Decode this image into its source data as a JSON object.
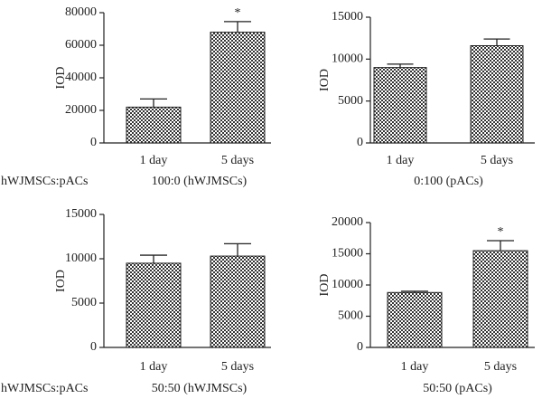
{
  "chart_data": [
    {
      "type": "bar",
      "ylabel": "IOD",
      "row_label": "hWJMSCs:pACs",
      "caption": "100:0 (hWJMSCs)",
      "categories": [
        "1 day",
        "5 days"
      ],
      "values": [
        22000,
        68000
      ],
      "errors": [
        5000,
        6500
      ],
      "ylim": [
        0,
        80000
      ],
      "yticks": [
        0,
        20000,
        40000,
        60000,
        80000
      ],
      "annotations": [
        {
          "text": "*",
          "category": 1
        }
      ]
    },
    {
      "type": "bar",
      "ylabel": "IOD",
      "caption": "0:100 (pACs)",
      "categories": [
        "1 day",
        "5 days"
      ],
      "values": [
        9000,
        11600
      ],
      "errors": [
        400,
        800
      ],
      "ylim": [
        0,
        15000
      ],
      "yticks": [
        0,
        5000,
        10000,
        15000
      ]
    },
    {
      "type": "bar",
      "ylabel": "IOD",
      "row_label": "hWJMSCs:pACs",
      "caption": "50:50 (hWJMSCs)",
      "categories": [
        "1 day",
        "5 days"
      ],
      "values": [
        9500,
        10300
      ],
      "errors": [
        900,
        1400
      ],
      "ylim": [
        0,
        15000
      ],
      "yticks": [
        0,
        5000,
        10000,
        15000
      ]
    },
    {
      "type": "bar",
      "ylabel": "IOD",
      "caption": "50:50 (pACs)",
      "categories": [
        "1 day",
        "5 days"
      ],
      "values": [
        8800,
        15500
      ],
      "errors": [
        200,
        1600
      ],
      "ylim": [
        0,
        20000
      ],
      "yticks": [
        0,
        5000,
        10000,
        15000,
        20000
      ],
      "annotations": [
        {
          "text": "*",
          "category": 1
        }
      ]
    }
  ]
}
